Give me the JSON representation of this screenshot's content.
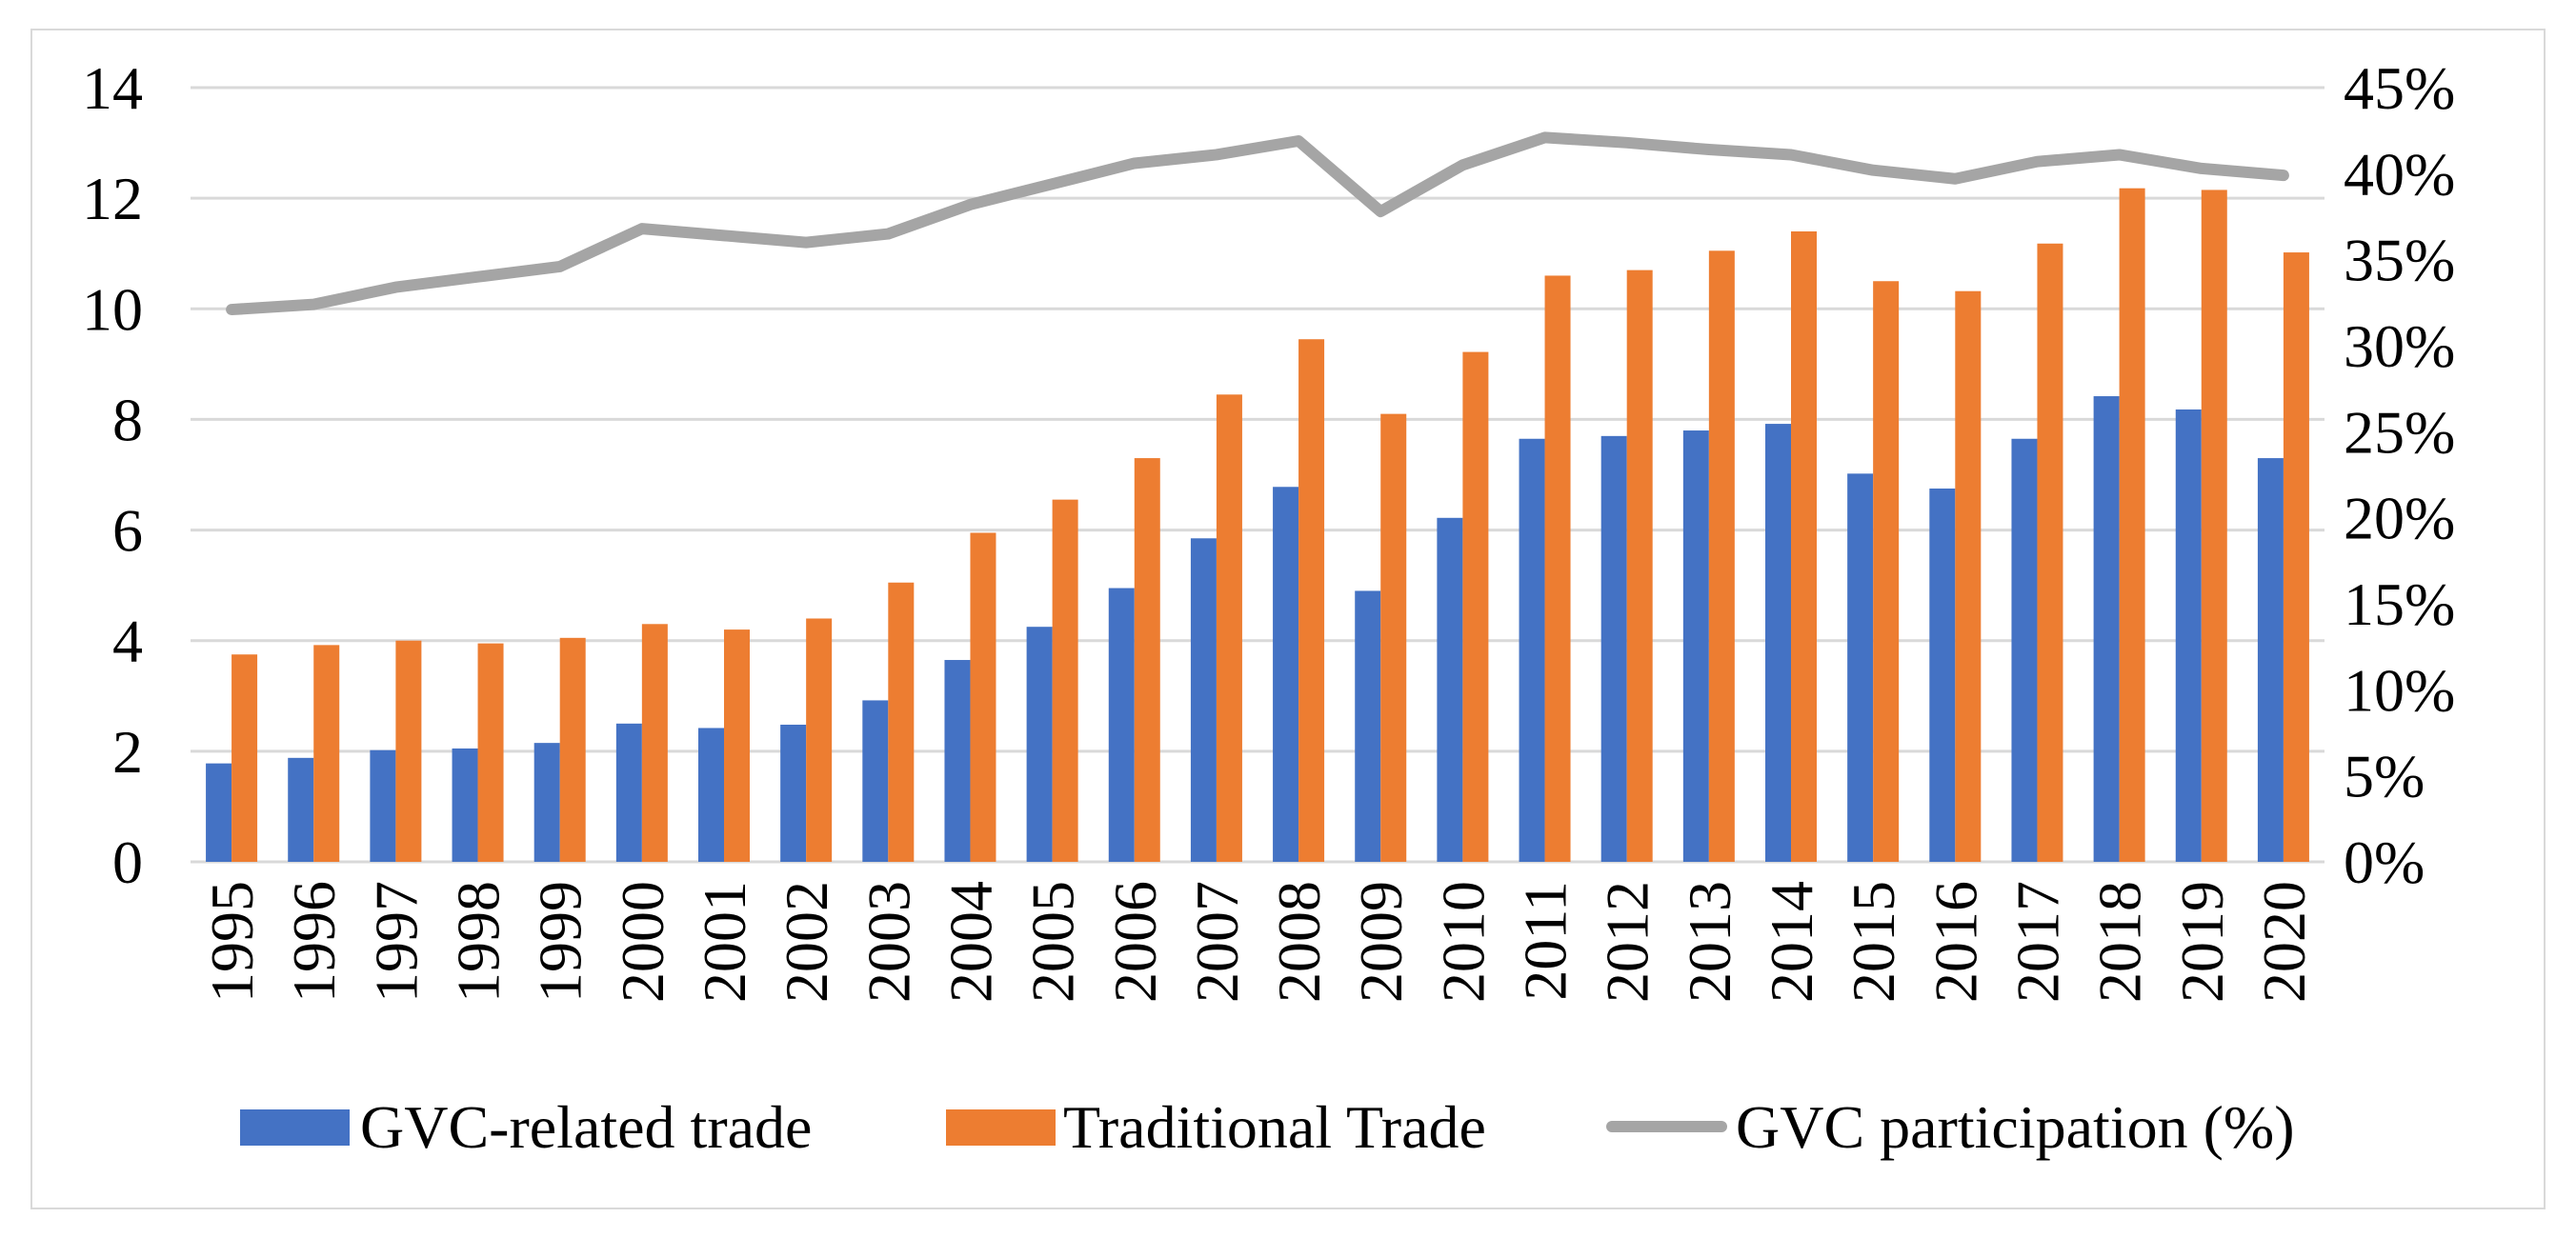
{
  "chart_data": {
    "type": "bar",
    "categories": [
      "1995",
      "1996",
      "1997",
      "1998",
      "1999",
      "2000",
      "2001",
      "2002",
      "2003",
      "2004",
      "2005",
      "2006",
      "2007",
      "2008",
      "2009",
      "2010",
      "2011",
      "2012",
      "2013",
      "2014",
      "2015",
      "2016",
      "2017",
      "2018",
      "2019",
      "2020"
    ],
    "series": [
      {
        "name": "GVC-related trade",
        "type": "bar",
        "axis": "left",
        "color": "#4472c4",
        "values": [
          1.78,
          1.88,
          2.02,
          2.05,
          2.15,
          2.5,
          2.42,
          2.48,
          2.92,
          3.65,
          4.25,
          4.95,
          5.85,
          6.78,
          4.9,
          6.22,
          7.65,
          7.7,
          7.8,
          7.92,
          7.02,
          6.75,
          7.65,
          8.42,
          8.18,
          7.3
        ]
      },
      {
        "name": "Traditional Trade",
        "type": "bar",
        "axis": "left",
        "color": "#ed7d31",
        "values": [
          3.75,
          3.92,
          4.0,
          3.95,
          4.05,
          4.3,
          4.2,
          4.4,
          5.05,
          5.95,
          6.55,
          7.3,
          8.45,
          9.45,
          8.1,
          9.22,
          10.6,
          10.7,
          11.05,
          11.4,
          10.5,
          10.32,
          11.18,
          12.18,
          12.15,
          11.02
        ]
      },
      {
        "name": "GVC participation (%)",
        "type": "line",
        "axis": "right",
        "color": "#a5a5a5",
        "values": [
          32.1,
          32.4,
          33.4,
          34.0,
          34.6,
          36.8,
          36.4,
          36.0,
          36.5,
          38.2,
          39.4,
          40.6,
          41.1,
          41.9,
          37.8,
          40.5,
          42.1,
          41.8,
          41.4,
          41.1,
          40.2,
          39.7,
          40.7,
          41.1,
          40.3,
          39.9
        ]
      }
    ],
    "y_left": {
      "min": 0,
      "max": 14,
      "ticks": [
        "0",
        "2",
        "4",
        "6",
        "8",
        "10",
        "12",
        "14"
      ]
    },
    "y_right": {
      "min": 0,
      "max": 45,
      "ticks": [
        "0%",
        "5%",
        "10%",
        "15%",
        "20%",
        "25%",
        "30%",
        "35%",
        "40%",
        "45%"
      ]
    },
    "grid": true,
    "legend_position": "bottom"
  }
}
